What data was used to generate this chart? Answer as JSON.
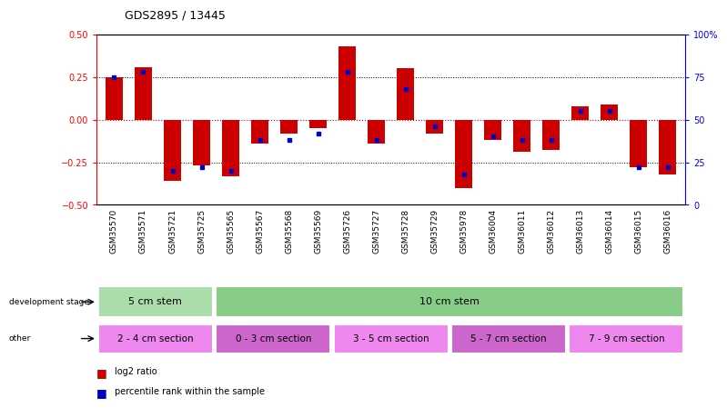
{
  "title": "GDS2895 / 13445",
  "samples": [
    "GSM35570",
    "GSM35571",
    "GSM35721",
    "GSM35725",
    "GSM35565",
    "GSM35567",
    "GSM35568",
    "GSM35569",
    "GSM35726",
    "GSM35727",
    "GSM35728",
    "GSM35729",
    "GSM35978",
    "GSM36004",
    "GSM36011",
    "GSM36012",
    "GSM36013",
    "GSM36014",
    "GSM36015",
    "GSM36016"
  ],
  "log2_ratio": [
    0.25,
    0.31,
    -0.36,
    -0.27,
    -0.33,
    -0.14,
    -0.08,
    -0.05,
    0.43,
    -0.14,
    0.3,
    -0.08,
    -0.4,
    -0.12,
    -0.19,
    -0.18,
    0.08,
    0.09,
    -0.28,
    -0.32
  ],
  "percentile": [
    75,
    78,
    20,
    22,
    20,
    38,
    38,
    42,
    78,
    38,
    68,
    46,
    18,
    40,
    38,
    38,
    55,
    55,
    22,
    22
  ],
  "ylim": [
    -0.5,
    0.5
  ],
  "y2lim": [
    0,
    100
  ],
  "yticks": [
    -0.5,
    -0.25,
    0.0,
    0.25,
    0.5
  ],
  "y2ticks": [
    0,
    25,
    50,
    75,
    100
  ],
  "dev_stage_groups": [
    {
      "label": "5 cm stem",
      "start": 0,
      "end": 4,
      "color": "#aaddaa"
    },
    {
      "label": "10 cm stem",
      "start": 4,
      "end": 20,
      "color": "#88cc88"
    }
  ],
  "other_groups": [
    {
      "label": "2 - 4 cm section",
      "start": 0,
      "end": 4,
      "color": "#ee88ee"
    },
    {
      "label": "0 - 3 cm section",
      "start": 4,
      "end": 8,
      "color": "#cc66cc"
    },
    {
      "label": "3 - 5 cm section",
      "start": 8,
      "end": 12,
      "color": "#ee88ee"
    },
    {
      "label": "5 - 7 cm section",
      "start": 12,
      "end": 16,
      "color": "#cc66cc"
    },
    {
      "label": "7 - 9 cm section",
      "start": 16,
      "end": 20,
      "color": "#ee88ee"
    }
  ],
  "bar_color": "#cc0000",
  "dot_color": "#0000cc",
  "zero_line_color": "#cc0000",
  "grid_color": "#000000",
  "bg_color": "#ffffff"
}
